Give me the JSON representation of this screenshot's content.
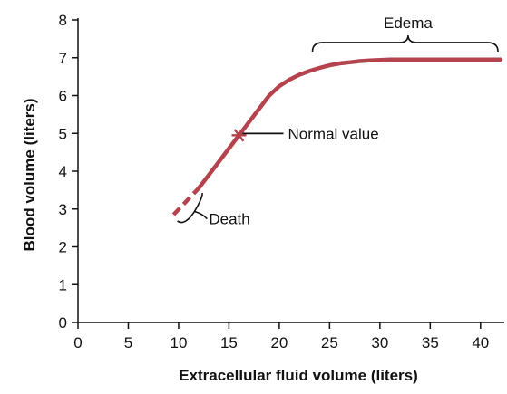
{
  "chart_data": {
    "type": "line",
    "xlabel": "Extracellular fluid volume (liters)",
    "ylabel": "Blood volume (liters)",
    "xlim": [
      0,
      42
    ],
    "ylim": [
      0,
      8
    ],
    "xticks": [
      0,
      5,
      10,
      15,
      20,
      25,
      30,
      35,
      40
    ],
    "yticks": [
      0,
      1,
      2,
      3,
      4,
      5,
      6,
      7,
      8
    ],
    "grid": false,
    "series_color": "#b5434e",
    "series": [
      {
        "solid": {
          "x": [
            12,
            14,
            16,
            18,
            19,
            20,
            21,
            22,
            23,
            24,
            25,
            26,
            27,
            28,
            29,
            30,
            31,
            33,
            36,
            39,
            42
          ],
          "y": [
            3.55,
            4.25,
            4.95,
            5.65,
            6.0,
            6.25,
            6.42,
            6.55,
            6.65,
            6.73,
            6.8,
            6.85,
            6.88,
            6.91,
            6.93,
            6.94,
            6.95,
            6.95,
            6.95,
            6.95,
            6.95
          ]
        },
        "dashed": {
          "x": [
            9.5,
            12
          ],
          "y": [
            2.85,
            3.55
          ]
        }
      }
    ],
    "annotations": [
      {
        "text": "Normal value",
        "x": 16,
        "y": 4.95
      },
      {
        "text": "Death",
        "x": 10.5,
        "y": 3.1
      },
      {
        "text": "Edema",
        "x_start": 23.3,
        "x_end": 42,
        "y": 7.45
      }
    ]
  }
}
